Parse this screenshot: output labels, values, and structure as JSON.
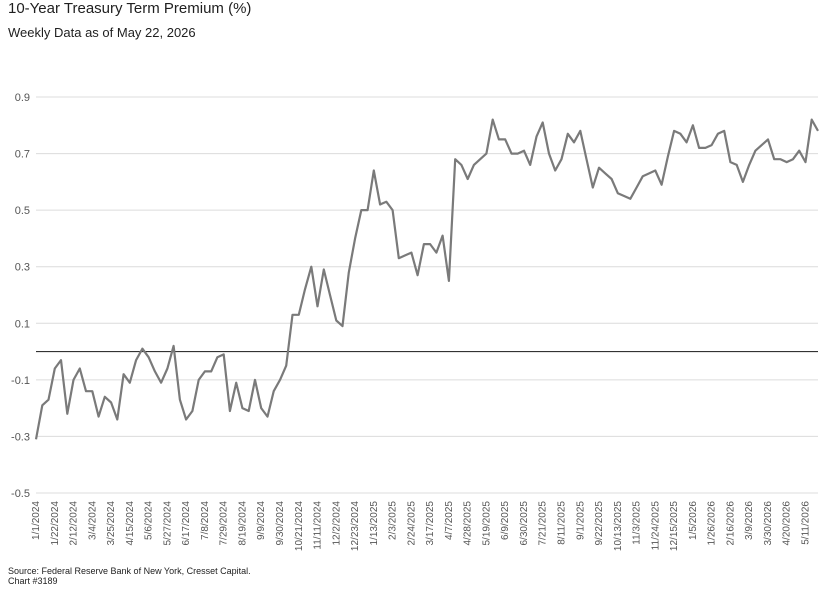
{
  "header": {
    "title": "10-Year Treasury Term Premium (%)",
    "subtitle": "Weekly Data as of May 22, 2026"
  },
  "footer": {
    "source": "Source: Federal Reserve Bank of New York, Cresset Capital.",
    "chart_id": "Chart #3189"
  },
  "colors": {
    "line": "#7a7a7a",
    "grid": "#dcdcdc",
    "zero_line": "#333333"
  },
  "chart_data": {
    "type": "line",
    "title": "10-Year Treasury Term Premium (%)",
    "subtitle": "Weekly Data as of May 22, 2026",
    "xlabel": "",
    "ylabel": "",
    "ylim": [
      -0.5,
      0.9
    ],
    "yticks": [
      0.9,
      0.7,
      0.5,
      0.3,
      0.1,
      -0.1,
      -0.3,
      -0.5
    ],
    "ytick_labels": [
      "0.9",
      "0.7",
      "0.5",
      "0.3",
      "0.1",
      "-0.1",
      "-0.3",
      "-0.5"
    ],
    "grid": true,
    "zero_line": true,
    "xtick_labels": [
      "1/1/2024",
      "1/22/2024",
      "2/12/2024",
      "3/4/2024",
      "3/25/2024",
      "4/15/2024",
      "5/6/2024",
      "5/27/2024",
      "6/17/2024",
      "7/8/2024",
      "7/29/2024",
      "8/19/2024",
      "9/9/2024",
      "9/30/2024",
      "10/21/2024",
      "11/11/2024",
      "12/2/2024",
      "12/23/2024",
      "1/13/2025",
      "2/3/2025",
      "2/24/2025",
      "3/17/2025",
      "4/7/2025",
      "4/28/2025",
      "5/19/2025",
      "6/9/2025",
      "6/30/2025",
      "7/21/2025",
      "8/11/2025",
      "9/1/2025",
      "9/22/2025",
      "10/13/2025",
      "11/3/2025",
      "11/24/2025",
      "12/15/2025",
      "1/5/2026",
      "1/26/2026",
      "2/16/2026",
      "3/9/2026",
      "3/30/2026",
      "4/20/2026",
      "5/11/2026"
    ],
    "series": [
      {
        "x_start": "1/1/2024",
        "x_step": "1 week",
        "values": [
          -0.31,
          -0.19,
          -0.17,
          -0.06,
          -0.03,
          -0.22,
          -0.1,
          -0.06,
          -0.14,
          -0.14,
          -0.23,
          -0.16,
          -0.18,
          -0.24,
          -0.08,
          -0.11,
          -0.03,
          0.01,
          -0.02,
          -0.07,
          -0.11,
          -0.06,
          0.02,
          -0.17,
          -0.24,
          -0.21,
          -0.1,
          -0.07,
          -0.07,
          -0.02,
          -0.01,
          -0.21,
          -0.11,
          -0.2,
          -0.21,
          -0.1,
          -0.2,
          -0.23,
          -0.14,
          -0.1,
          -0.05,
          0.13,
          0.13,
          0.22,
          0.3,
          0.16,
          0.29,
          0.2,
          0.11,
          0.09,
          0.28,
          0.4,
          0.5,
          0.5,
          0.64,
          0.52,
          0.53,
          0.5,
          0.33,
          0.34,
          0.35,
          0.27,
          0.38,
          0.38,
          0.35,
          0.41,
          0.25,
          0.68,
          0.66,
          0.61,
          0.66,
          0.68,
          0.7,
          0.82,
          0.75,
          0.75,
          0.7,
          0.7,
          0.71,
          0.66,
          0.76,
          0.81,
          0.7,
          0.64,
          0.68,
          0.77,
          0.74,
          0.78,
          0.68,
          0.58,
          0.65,
          0.63,
          0.61,
          0.56,
          0.55,
          0.54,
          0.58,
          0.62,
          0.63,
          0.64,
          0.59,
          0.69,
          0.78,
          0.77,
          0.74,
          0.8,
          0.72,
          0.72,
          0.73,
          0.77,
          0.78,
          0.67,
          0.66,
          0.6,
          0.66,
          0.71,
          0.73,
          0.75,
          0.68,
          0.68,
          0.67,
          0.68,
          0.71,
          0.67,
          0.82,
          0.78
        ]
      }
    ]
  }
}
